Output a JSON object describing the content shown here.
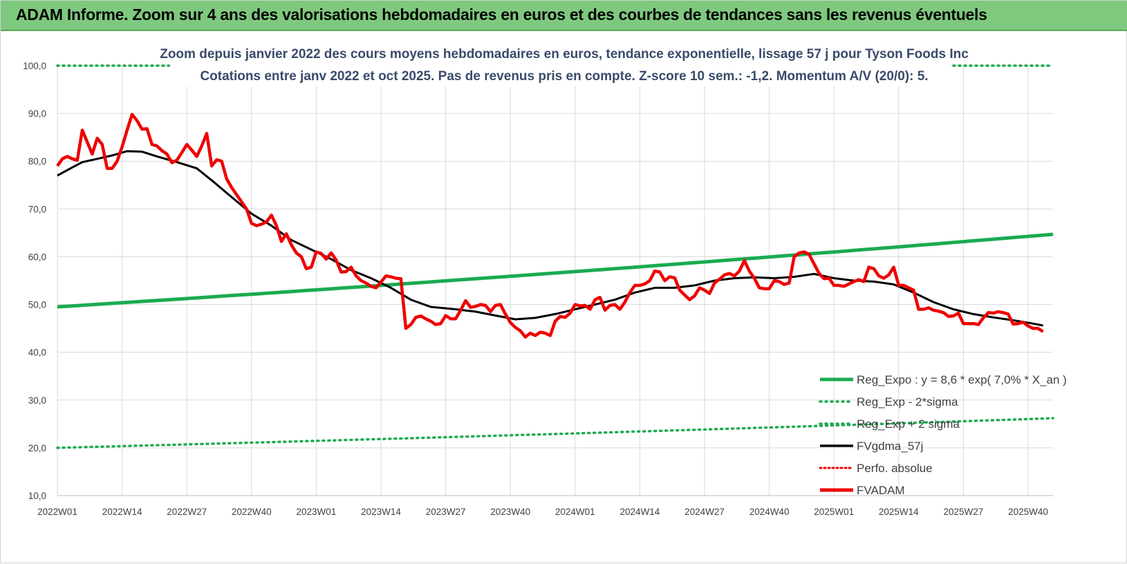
{
  "header": {
    "title": "ADAM Informe. Zoom sur 4 ans des valorisations hebdomadaires en euros et des courbes de tendances sans les revenus éventuels"
  },
  "colors": {
    "reg_expo": "#1aab50",
    "fvgdma": "#000000",
    "fvadam": "#ee0000",
    "perfo": "#ee0000",
    "banner": "#7fc97f",
    "grid": "#d9d9d9"
  },
  "chart_data": {
    "type": "line",
    "subtitle_line1": "Zoom depuis janvier 2022 des cours moyens hebdomadaires en euros, tendance exponentielle, lissage 57 j pour Tyson Foods Inc",
    "subtitle_line2": "Cotations entre janv 2022 et oct 2025. Pas de revenus pris en compte. Z-score 10 sem.: -1,2. Momentum A/V (20/0): 5.",
    "x_tick_labels": [
      "2022W01",
      "2022W14",
      "2022W27",
      "2022W40",
      "2023W01",
      "2023W14",
      "2023W27",
      "2023W40",
      "2024W01",
      "2024W14",
      "2024W27",
      "2024W40",
      "2025W01",
      "2025W14",
      "2025W27",
      "2025W40"
    ],
    "x_tick_weeks": [
      0,
      13,
      26,
      39,
      52,
      65,
      78,
      91,
      104,
      117,
      130,
      143,
      156,
      169,
      182,
      195
    ],
    "y_tick_labels": [
      "10,0",
      "20,0",
      "30,0",
      "40,0",
      "50,0",
      "60,0",
      "70,0",
      "80,0",
      "90,0",
      "100,0"
    ],
    "ylim": [
      10,
      100
    ],
    "xlim_weeks": [
      0,
      200
    ],
    "grid": true,
    "legend_position": "right",
    "legend": [
      {
        "key": "reg_expo",
        "label": "Reg_Expo : y = 8,6 * exp( 7,0% *  X_an )",
        "style": "solid-green"
      },
      {
        "key": "reg_minus",
        "label": "Reg_Exp - 2*sigma",
        "style": "dotted-green"
      },
      {
        "key": "reg_plus",
        "label": "Reg_Exp + 2 sigma",
        "style": "dotted-green"
      },
      {
        "key": "fvgdma",
        "label": "FVgdma_57j",
        "style": "solid-black"
      },
      {
        "key": "perfo",
        "label": "Perfo. absolue",
        "style": "dotted-red"
      },
      {
        "key": "fvadam",
        "label": "FVADAM",
        "style": "solid-red"
      }
    ],
    "series": [
      {
        "key": "reg_expo",
        "x_weeks": [
          0,
          200
        ],
        "values": [
          49.5,
          64.7
        ],
        "curve": "exponential"
      },
      {
        "key": "reg_minus",
        "x_weeks": [
          0,
          200
        ],
        "values": [
          20.0,
          26.2
        ],
        "curve": "exponential"
      },
      {
        "key": "reg_plus",
        "x_weeks": [
          0,
          200
        ],
        "values": [
          100.0,
          100.0
        ],
        "curve": "flat"
      },
      {
        "key": "fvgdma",
        "points": [
          [
            0,
            77
          ],
          [
            3,
            78.7
          ],
          [
            5,
            79.8
          ],
          [
            8,
            80.5
          ],
          [
            11,
            81.2
          ],
          [
            14,
            82.1
          ],
          [
            17,
            82
          ],
          [
            20,
            81
          ],
          [
            24,
            79.8
          ],
          [
            28,
            78.5
          ],
          [
            31,
            76
          ],
          [
            35,
            72.5
          ],
          [
            39,
            69
          ],
          [
            43,
            66.5
          ],
          [
            47,
            63.5
          ],
          [
            51,
            61.5
          ],
          [
            55,
            59.5
          ],
          [
            59,
            57.2
          ],
          [
            63,
            55.5
          ],
          [
            67,
            53.5
          ],
          [
            71,
            51
          ],
          [
            75,
            49.5
          ],
          [
            80,
            49
          ],
          [
            84,
            48.5
          ],
          [
            88,
            47.7
          ],
          [
            92,
            46.9
          ],
          [
            96,
            47.2
          ],
          [
            100,
            48
          ],
          [
            104,
            49
          ],
          [
            108,
            50
          ],
          [
            112,
            51
          ],
          [
            116,
            52.5
          ],
          [
            120,
            53.5
          ],
          [
            124,
            53.5
          ],
          [
            128,
            54
          ],
          [
            132,
            55
          ],
          [
            136,
            55.5
          ],
          [
            140,
            55.7
          ],
          [
            144,
            55.5
          ],
          [
            148,
            55.8
          ],
          [
            152,
            56.4
          ],
          [
            156,
            55.5
          ],
          [
            160,
            55
          ],
          [
            164,
            54.8
          ],
          [
            168,
            54.2
          ],
          [
            172,
            52.5
          ],
          [
            176,
            50.5
          ],
          [
            180,
            49
          ],
          [
            184,
            48
          ],
          [
            188,
            47.3
          ],
          [
            192,
            46.7
          ],
          [
            196,
            46
          ],
          [
            198,
            45.6
          ]
        ]
      },
      {
        "key": "fvadam",
        "points": [
          [
            0,
            79
          ],
          [
            1,
            80.5
          ],
          [
            2,
            81
          ],
          [
            3,
            80.5
          ],
          [
            4,
            80.2
          ],
          [
            5,
            86.5
          ],
          [
            6,
            84
          ],
          [
            7,
            81.5
          ],
          [
            8,
            84.8
          ],
          [
            9,
            83.5
          ],
          [
            10,
            78.5
          ],
          [
            11,
            78.5
          ],
          [
            12,
            80
          ],
          [
            13,
            83
          ],
          [
            14,
            86.5
          ],
          [
            15,
            89.8
          ],
          [
            16,
            88.5
          ],
          [
            17,
            86.7
          ],
          [
            18,
            86.8
          ],
          [
            19,
            83.5
          ],
          [
            20,
            83.2
          ],
          [
            21,
            82.2
          ],
          [
            22,
            81.5
          ],
          [
            23,
            79.7
          ],
          [
            24,
            80.2
          ],
          [
            25,
            81.8
          ],
          [
            26,
            83.5
          ],
          [
            27,
            82.3
          ],
          [
            28,
            81
          ],
          [
            29,
            83.2
          ],
          [
            30,
            85.8
          ],
          [
            31,
            79
          ],
          [
            32,
            80.3
          ],
          [
            33,
            80
          ],
          [
            34,
            76.3
          ],
          [
            35,
            74.5
          ],
          [
            36,
            73
          ],
          [
            37,
            71.5
          ],
          [
            38,
            70
          ],
          [
            39,
            67
          ],
          [
            40,
            66.5
          ],
          [
            41,
            66.8
          ],
          [
            42,
            67.3
          ],
          [
            43,
            68.7
          ],
          [
            44,
            66.5
          ],
          [
            45,
            63.2
          ],
          [
            46,
            64.8
          ],
          [
            47,
            62.5
          ],
          [
            48,
            60.8
          ],
          [
            49,
            60
          ],
          [
            50,
            57.5
          ],
          [
            51,
            57.8
          ],
          [
            52,
            61
          ],
          [
            53,
            60.7
          ],
          [
            54,
            59.5
          ],
          [
            55,
            60.8
          ],
          [
            56,
            59.3
          ],
          [
            57,
            56.8
          ],
          [
            58,
            56.9
          ],
          [
            59,
            57.8
          ],
          [
            60,
            56
          ],
          [
            61,
            55
          ],
          [
            62,
            54.5
          ],
          [
            63,
            53.8
          ],
          [
            64,
            53.5
          ],
          [
            65,
            54.7
          ],
          [
            66,
            56
          ],
          [
            67,
            55.8
          ],
          [
            68,
            55.5
          ],
          [
            69,
            55.4
          ],
          [
            70,
            45
          ],
          [
            71,
            45.8
          ],
          [
            72,
            47.3
          ],
          [
            73,
            47.6
          ],
          [
            74,
            47
          ],
          [
            75,
            46.5
          ],
          [
            76,
            45.8
          ],
          [
            77,
            46
          ],
          [
            78,
            47.7
          ],
          [
            79,
            47
          ],
          [
            80,
            47
          ],
          [
            81,
            48.8
          ],
          [
            82,
            50.8
          ],
          [
            83,
            49.4
          ],
          [
            84,
            49.6
          ],
          [
            85,
            50
          ],
          [
            86,
            49.8
          ],
          [
            87,
            48.5
          ],
          [
            88,
            49.8
          ],
          [
            89,
            50
          ],
          [
            90,
            48
          ],
          [
            91,
            46.2
          ],
          [
            92,
            45.2
          ],
          [
            93,
            44.5
          ],
          [
            94,
            43.2
          ],
          [
            95,
            44
          ],
          [
            96,
            43.5
          ],
          [
            97,
            44.2
          ],
          [
            98,
            44
          ],
          [
            99,
            43.5
          ],
          [
            100,
            46.5
          ],
          [
            101,
            47.5
          ],
          [
            102,
            47.3
          ],
          [
            103,
            48.2
          ],
          [
            104,
            50
          ],
          [
            105,
            49.7
          ],
          [
            106,
            49.8
          ],
          [
            107,
            49
          ],
          [
            108,
            51
          ],
          [
            109,
            51.5
          ],
          [
            110,
            48.8
          ],
          [
            111,
            49.8
          ],
          [
            112,
            50
          ],
          [
            113,
            49
          ],
          [
            114,
            50.5
          ],
          [
            115,
            52.5
          ],
          [
            116,
            54
          ],
          [
            117,
            54
          ],
          [
            118,
            54.3
          ],
          [
            119,
            55
          ],
          [
            120,
            57
          ],
          [
            121,
            56.8
          ],
          [
            122,
            55
          ],
          [
            123,
            55.8
          ],
          [
            124,
            55.6
          ],
          [
            125,
            53
          ],
          [
            126,
            52
          ],
          [
            127,
            51
          ],
          [
            128,
            51.8
          ],
          [
            129,
            53.5
          ],
          [
            130,
            53
          ],
          [
            131,
            52.3
          ],
          [
            132,
            54.5
          ],
          [
            133,
            55.3
          ],
          [
            134,
            56.2
          ],
          [
            135,
            56.5
          ],
          [
            136,
            56
          ],
          [
            137,
            57
          ],
          [
            138,
            59.2
          ],
          [
            139,
            57
          ],
          [
            140,
            55.5
          ],
          [
            141,
            53.5
          ],
          [
            142,
            53.3
          ],
          [
            143,
            53.3
          ],
          [
            144,
            55
          ],
          [
            145,
            54.8
          ],
          [
            146,
            54.2
          ],
          [
            147,
            54.5
          ],
          [
            148,
            60
          ],
          [
            149,
            60.8
          ],
          [
            150,
            61
          ],
          [
            151,
            60.5
          ],
          [
            152,
            58.5
          ],
          [
            153,
            56.5
          ],
          [
            154,
            55.4
          ],
          [
            155,
            55.5
          ],
          [
            156,
            54
          ],
          [
            157,
            54
          ],
          [
            158,
            53.8
          ],
          [
            159,
            54.3
          ],
          [
            160,
            54.8
          ],
          [
            161,
            55.2
          ],
          [
            162,
            54.8
          ],
          [
            163,
            57.8
          ],
          [
            164,
            57.5
          ],
          [
            165,
            56
          ],
          [
            166,
            55.5
          ],
          [
            167,
            56.2
          ],
          [
            168,
            57.8
          ],
          [
            169,
            54
          ],
          [
            170,
            54
          ],
          [
            171,
            53.5
          ],
          [
            172,
            53
          ],
          [
            173,
            49
          ],
          [
            174,
            49
          ],
          [
            175,
            49.3
          ],
          [
            176,
            48.8
          ],
          [
            177,
            48.6
          ],
          [
            178,
            48.3
          ],
          [
            179,
            47.5
          ],
          [
            180,
            47.6
          ],
          [
            181,
            48.2
          ],
          [
            182,
            46
          ],
          [
            183,
            46
          ],
          [
            184,
            46
          ],
          [
            185,
            45.8
          ],
          [
            186,
            47.2
          ],
          [
            187,
            48.3
          ],
          [
            188,
            48.2
          ],
          [
            189,
            48.5
          ],
          [
            190,
            48.3
          ],
          [
            191,
            48
          ],
          [
            192,
            45.9
          ],
          [
            193,
            46
          ],
          [
            194,
            46.3
          ],
          [
            195,
            45.5
          ],
          [
            196,
            45
          ],
          [
            197,
            45
          ],
          [
            198,
            44.3
          ]
        ]
      }
    ]
  }
}
